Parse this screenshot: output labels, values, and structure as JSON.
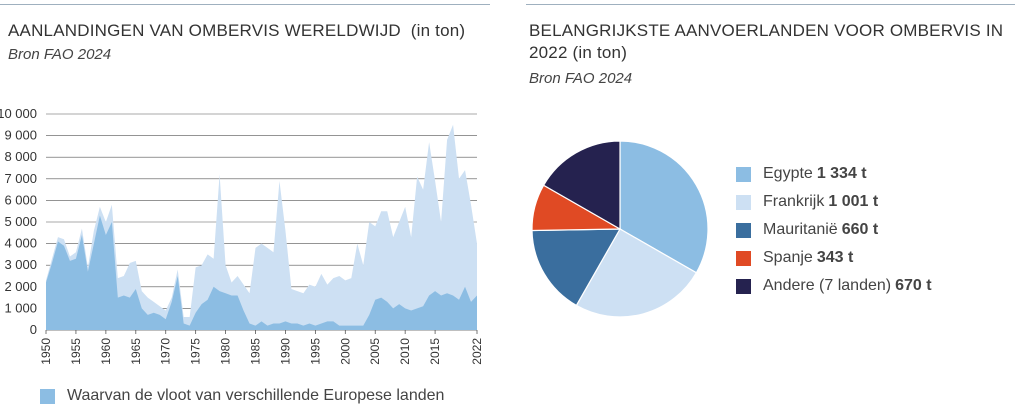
{
  "left_panel": {
    "title": "AANLANDINGEN VAN OMBERVIS WERELDWIJD  (in ton)",
    "source": "Bron FAO 2024",
    "legend_label": "Waarvan de vloot van verschillende Europese landen",
    "colors": {
      "total": "#cde0f3",
      "europe": "#8cbde3"
    }
  },
  "right_panel": {
    "title_line1": "BELANGRIJKSTE AANVOERLANDEN VOOR OMBERVIS IN",
    "title_line2": "2022 (in ton)",
    "source": "Bron FAO 2024"
  },
  "chart_data": [
    {
      "type": "area",
      "title": "AANLANDINGEN VAN OMBERVIS WERELDWIJD  (in ton)",
      "ylim": [
        0,
        10000
      ],
      "xlim": [
        1950,
        2022
      ],
      "y_ticks": [
        0,
        1000,
        2000,
        3000,
        4000,
        5000,
        6000,
        7000,
        8000,
        9000,
        10000
      ],
      "y_tick_labels": [
        "0",
        "1 000",
        "2 000",
        "3 000",
        "4 000",
        "5 000",
        "6 000",
        "7 000",
        "8 000",
        "9 000",
        "10 000"
      ],
      "x_ticks": [
        1950,
        1955,
        1960,
        1965,
        1970,
        1975,
        1980,
        1985,
        1990,
        1995,
        2000,
        2005,
        2010,
        2015,
        2022
      ],
      "grid": "horizontal",
      "series": [
        {
          "legend": false,
          "color": "#cde0f3",
          "x": [
            1950,
            1951,
            1952,
            1953,
            1954,
            1955,
            1956,
            1957,
            1958,
            1959,
            1960,
            1961,
            1962,
            1963,
            1964,
            1965,
            1966,
            1967,
            1968,
            1969,
            1970,
            1971,
            1972,
            1973,
            1974,
            1975,
            1976,
            1977,
            1978,
            1979,
            1980,
            1981,
            1982,
            1983,
            1984,
            1985,
            1986,
            1987,
            1988,
            1989,
            1990,
            1991,
            1992,
            1993,
            1994,
            1995,
            1996,
            1997,
            1998,
            1999,
            2000,
            2001,
            2002,
            2003,
            2004,
            2005,
            2006,
            2007,
            2008,
            2009,
            2010,
            2011,
            2012,
            2013,
            2014,
            2015,
            2016,
            2017,
            2018,
            2019,
            2020,
            2021,
            2022
          ],
          "values": [
            2300,
            3300,
            4300,
            4200,
            3400,
            3600,
            4700,
            2900,
            4600,
            5700,
            5000,
            5800,
            2400,
            2500,
            3100,
            3200,
            1800,
            1500,
            1300,
            1100,
            900,
            1500,
            2800,
            600,
            600,
            2900,
            3000,
            3500,
            3300,
            7200,
            3000,
            2200,
            2500,
            2100,
            1700,
            3800,
            4000,
            3800,
            3600,
            6900,
            4600,
            1900,
            1800,
            1700,
            2100,
            2000,
            2600,
            2100,
            2400,
            2500,
            2300,
            2400,
            4000,
            3000,
            5000,
            4800,
            5500,
            5500,
            4300,
            5000,
            5700,
            4300,
            7100,
            6500,
            8700,
            6900,
            5000,
            8800,
            9500,
            7000,
            7400,
            5800,
            4000
          ]
        },
        {
          "name": "Waarvan de vloot van verschillende Europese landen",
          "color": "#8cbde3",
          "x": [
            1950,
            1951,
            1952,
            1953,
            1954,
            1955,
            1956,
            1957,
            1958,
            1959,
            1960,
            1961,
            1962,
            1963,
            1964,
            1965,
            1966,
            1967,
            1968,
            1969,
            1970,
            1971,
            1972,
            1973,
            1974,
            1975,
            1976,
            1977,
            1978,
            1979,
            1980,
            1981,
            1982,
            1983,
            1984,
            1985,
            1986,
            1987,
            1988,
            1989,
            1990,
            1991,
            1992,
            1993,
            1994,
            1995,
            1996,
            1997,
            1998,
            1999,
            2000,
            2001,
            2002,
            2003,
            2004,
            2005,
            2006,
            2007,
            2008,
            2009,
            2010,
            2011,
            2012,
            2013,
            2014,
            2015,
            2016,
            2017,
            2018,
            2019,
            2020,
            2021,
            2022
          ],
          "values": [
            2200,
            3100,
            4100,
            3900,
            3200,
            3300,
            4400,
            2700,
            4000,
            5300,
            4400,
            5000,
            1500,
            1600,
            1500,
            1900,
            1000,
            700,
            800,
            700,
            500,
            1300,
            2500,
            300,
            200,
            800,
            1200,
            1400,
            2000,
            1800,
            1700,
            1600,
            1600,
            900,
            300,
            200,
            400,
            200,
            300,
            300,
            400,
            300,
            300,
            200,
            300,
            200,
            300,
            400,
            400,
            200,
            200,
            200,
            200,
            200,
            700,
            1400,
            1500,
            1300,
            1000,
            1200,
            1000,
            900,
            1000,
            1100,
            1600,
            1800,
            1600,
            1700,
            1600,
            1400,
            2000,
            1300,
            1600
          ]
        }
      ]
    },
    {
      "type": "pie",
      "title": "BELANGRIJKSTE AANVOERLANDEN VOOR OMBERVIS IN 2022 (in ton)",
      "categories": [
        "Egypte",
        "Frankrijk",
        "Mauritanië",
        "Spanje",
        "Andere (7 landen)"
      ],
      "values": [
        1334,
        1001,
        660,
        343,
        670
      ],
      "value_labels": [
        "1 334 t",
        "1 001 t",
        "660 t",
        "343 t",
        "670 t"
      ],
      "colors": [
        "#8cbde3",
        "#cde0f3",
        "#3a6e9e",
        "#e04a24",
        "#25224f"
      ],
      "legend": "right"
    }
  ]
}
